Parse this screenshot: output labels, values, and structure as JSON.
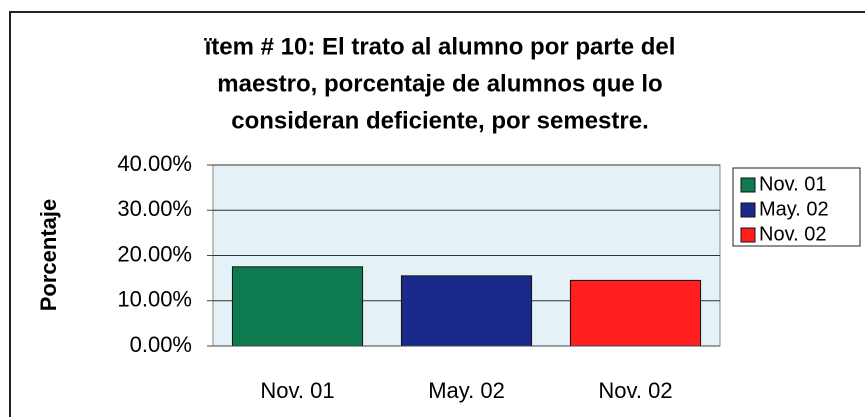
{
  "chart_data": {
    "type": "bar",
    "title": [
      "ïtem # 10: El trato al alumno por parte del",
      "maestro, porcentaje de alumnos que lo",
      "consideran deficiente, por semestre."
    ],
    "ylabel": "Porcentaje",
    "categories": [
      "Nov. 01",
      "May. 02",
      "Nov. 02"
    ],
    "values": [
      17.5,
      15.5,
      14.5
    ],
    "colors": [
      "#0e7a50",
      "#1a2a8c",
      "#ff1f1f"
    ],
    "ylim": [
      0,
      40
    ],
    "yticks": [
      {
        "value": 0,
        "label": "0.00%"
      },
      {
        "value": 10,
        "label": "10.00%"
      },
      {
        "value": 20,
        "label": "20.00%"
      },
      {
        "value": 30,
        "label": "30.00%"
      },
      {
        "value": 40,
        "label": "40.00%"
      }
    ],
    "grid": true,
    "legend": "right"
  }
}
